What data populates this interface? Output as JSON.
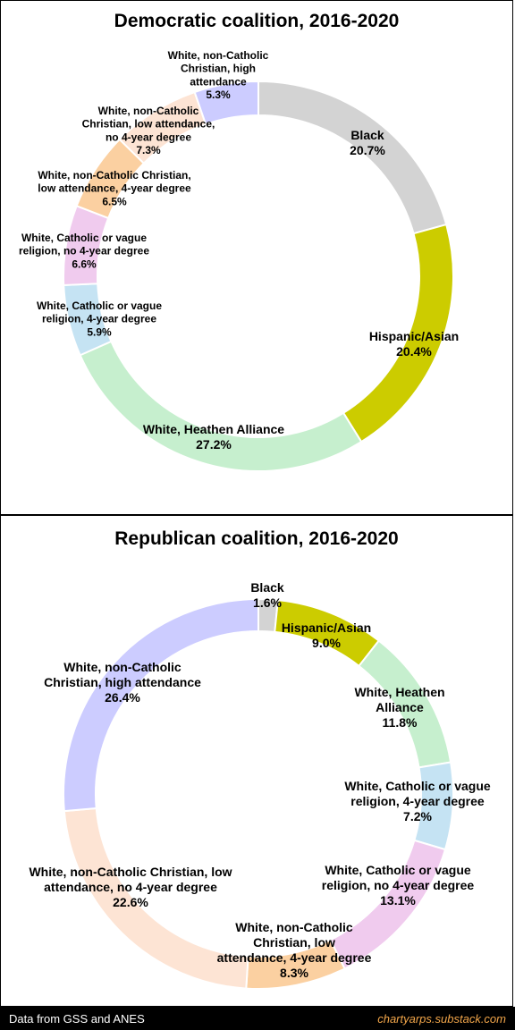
{
  "chart_data": [
    {
      "type": "pie",
      "title": "Democratic coalition, 2016-2020",
      "categories": [
        "Black",
        "Hispanic/Asian",
        "White, Heathen Alliance",
        "White, Catholic or vague religion, 4-year degree",
        "White, Catholic or vague religion, no 4-year degree",
        "White, non-Catholic Christian, low attendance, 4-year degree",
        "White, non-Catholic Christian, low attendance, no 4-year degree",
        "White, non-Catholic Christian, high attendance"
      ],
      "values": [
        20.7,
        20.4,
        27.2,
        5.9,
        6.6,
        6.5,
        7.3,
        5.3
      ],
      "value_labels": [
        "20.7%",
        "20.4%",
        "27.2%",
        "5.9%",
        "6.6%",
        "6.5%",
        "7.3%",
        "5.3%"
      ],
      "colors": [
        "#d3d3d3",
        "#cccc00",
        "#c6efce",
        "#c5e3f3",
        "#f0cbee",
        "#fbd0a1",
        "#fde4d4",
        "#ccccff"
      ]
    },
    {
      "type": "pie",
      "title": "Republican coalition, 2016-2020",
      "categories": [
        "Black",
        "Hispanic/Asian",
        "White, Heathen Alliance",
        "White, Catholic or vague religion, 4-year degree",
        "White, Catholic or vague religion, no 4-year degree",
        "White, non-Catholic Christian, low attendance, 4-year degree",
        "White, non-Catholic Christian, low attendance, no 4-year degree",
        "White, non-Catholic Christian, high attendance"
      ],
      "values": [
        1.6,
        9.0,
        11.8,
        7.2,
        13.1,
        8.3,
        22.6,
        26.4
      ],
      "value_labels": [
        "1.6%",
        "9.0%",
        "11.8%",
        "7.2%",
        "13.1%",
        "8.3%",
        "22.6%",
        "26.4%"
      ],
      "colors": [
        "#d3d3d3",
        "#cccc00",
        "#c6efce",
        "#c5e3f3",
        "#f0cbee",
        "#fbd0a1",
        "#fde4d4",
        "#ccccff"
      ]
    }
  ],
  "footer": {
    "source": "Data from GSS and ANES",
    "site": "chartyarps.substack.com"
  }
}
